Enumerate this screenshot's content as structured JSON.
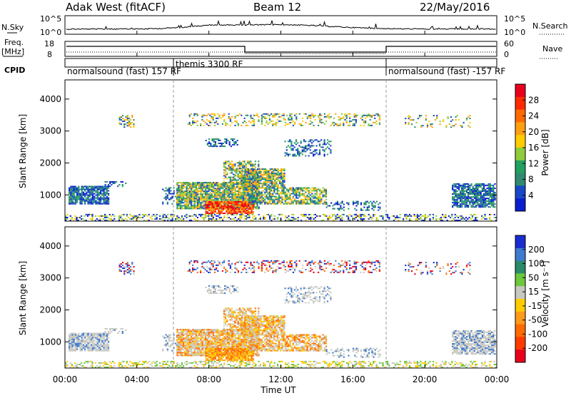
{
  "header": {
    "station": "Adak West (fitACF)",
    "beam": "Beam 12",
    "date": "22/May/2016"
  },
  "top_panels": {
    "nsky": {
      "label": "N.Sky",
      "ticks": [
        "10^5",
        "10^0"
      ],
      "right_ticks": [
        "10^5",
        "10^0"
      ],
      "right_label": "N.Search"
    },
    "freq": {
      "label_line1": "Freq.",
      "label_line2": "[MHz]",
      "ticks": [
        "18",
        "8"
      ],
      "right_ticks": [
        "60",
        "0"
      ],
      "right_label": "Nave"
    },
    "cpid": {
      "label": "CPID",
      "segments": [
        {
          "text": "normalsound (fast) 157 RF",
          "start_hour": 0,
          "end_hour": 6
        },
        {
          "text": "themis 3300 RF",
          "start_hour": 6,
          "end_hour": 18
        },
        {
          "text": "normalsound (fast) -157 RF",
          "start_hour": 18,
          "end_hour": 24
        }
      ]
    }
  },
  "chart_data": [
    {
      "type": "heatmap",
      "ylabel": "Slant Range [km]",
      "y_ticks": [
        1000,
        2000,
        3000,
        4000
      ],
      "ylim": [
        180,
        4600
      ],
      "xlim": [
        0,
        24
      ],
      "colorbar": {
        "label": "Power [dB]",
        "ticks": [
          "28",
          "24",
          "20",
          "16",
          "12",
          "8",
          "4"
        ],
        "colors": [
          "#e8001c",
          "#ff2a00",
          "#ff6a00",
          "#ff9e12",
          "#ffcc00",
          "#8ecc3c",
          "#22a060",
          "#2f8a70",
          "#1848c8",
          "#0a1ecf"
        ]
      }
    },
    {
      "type": "heatmap",
      "ylabel": "Slant Range [km]",
      "y_ticks": [
        1000,
        2000,
        3000,
        4000
      ],
      "ylim": [
        180,
        4600
      ],
      "xlim": [
        0,
        24
      ],
      "colorbar": {
        "label": "Velocity [m s⁻¹]",
        "ticks": [
          "200",
          "100",
          "50",
          "15",
          "-15",
          "-50",
          "-100",
          "-200"
        ],
        "colors": [
          "#1a2bcf",
          "#3e7ad0",
          "#2a8a6a",
          "#6cc83c",
          "#c8c8c0",
          "#ffcc00",
          "#ff9a1a",
          "#ff6a00",
          "#ff3a00",
          "#e8001c"
        ]
      }
    }
  ],
  "time_axis": {
    "ticks": [
      "00:00",
      "04:00",
      "08:00",
      "12:00",
      "16:00",
      "20:00",
      "00:00"
    ],
    "tick_hours": [
      0,
      4,
      8,
      12,
      16,
      20,
      24
    ],
    "label": "Time UT"
  }
}
